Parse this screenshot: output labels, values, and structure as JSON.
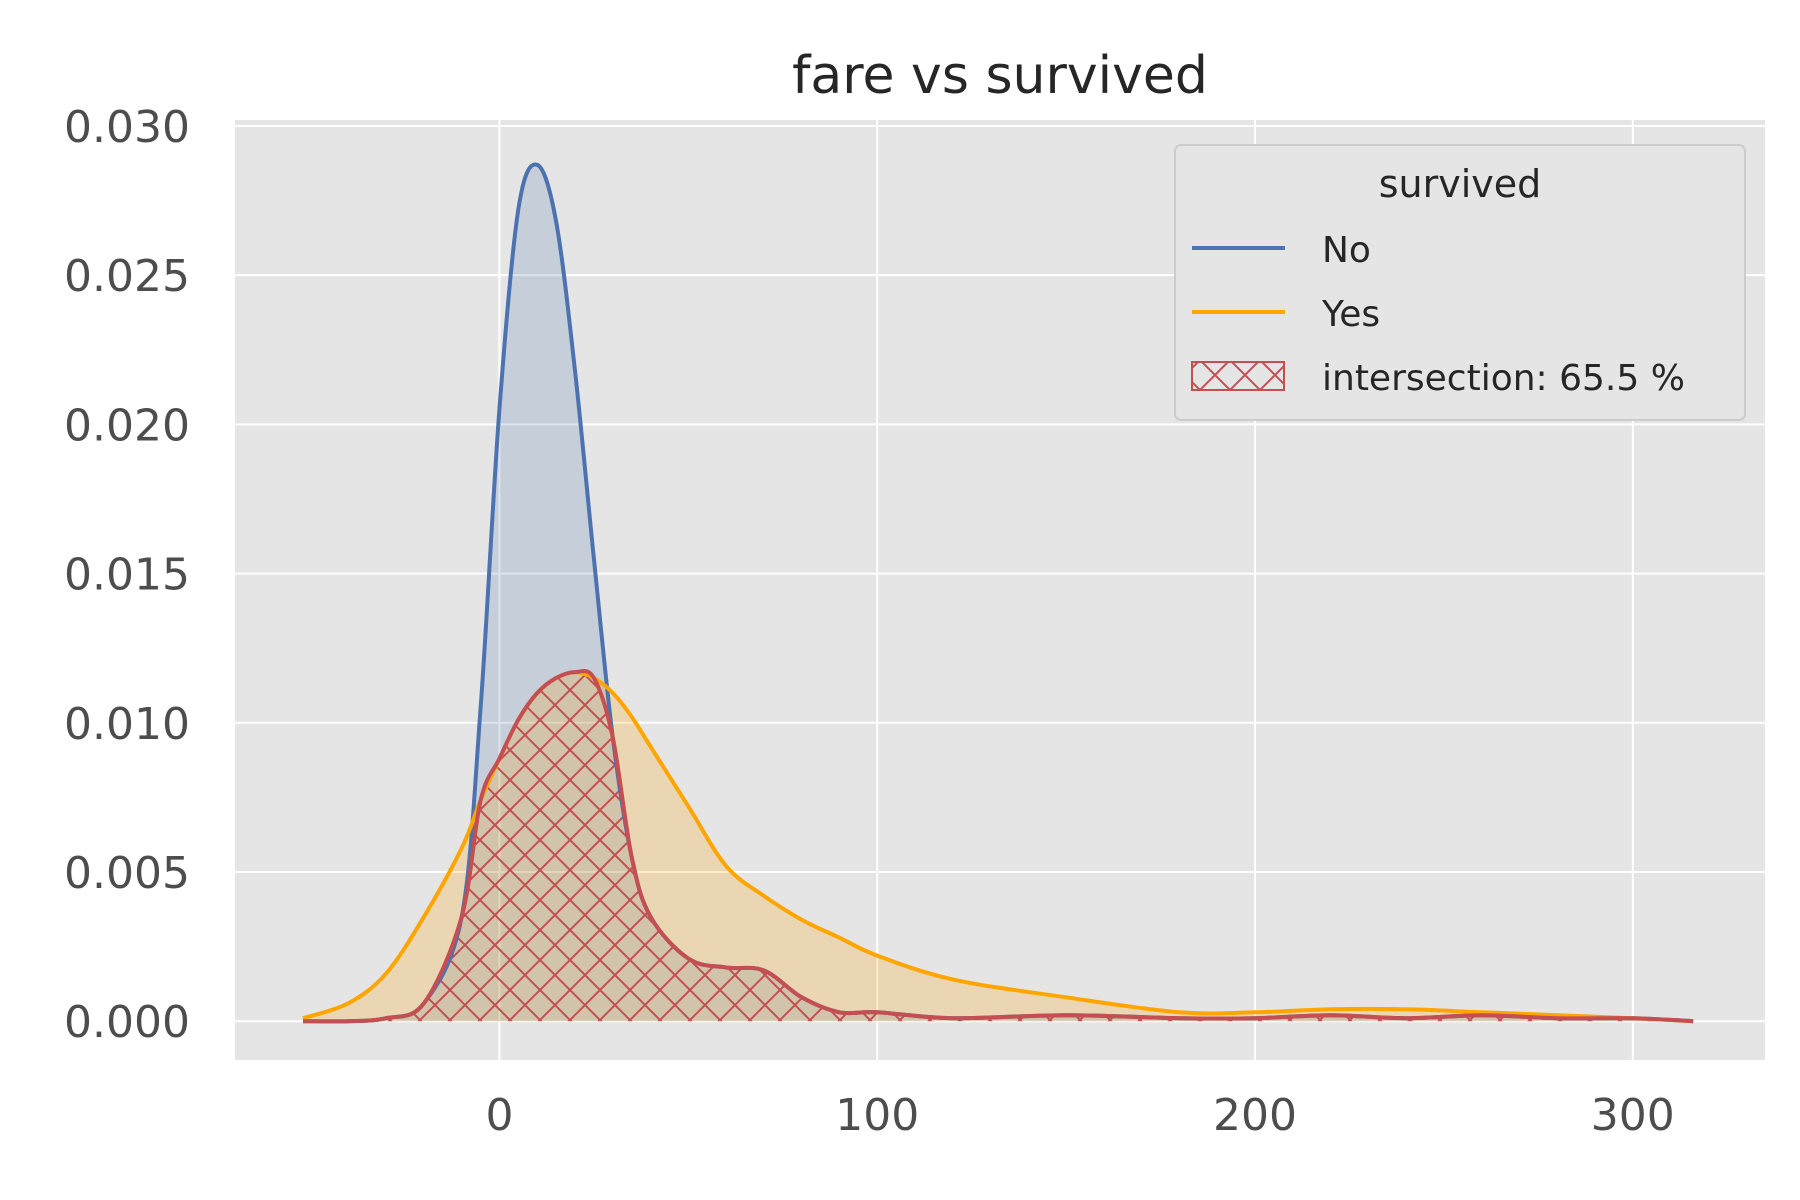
{
  "chart_data": {
    "type": "area",
    "title": "fare vs survived",
    "xlabel": "",
    "ylabel": "",
    "xlim": [
      -70,
      335
    ],
    "ylim": [
      -0.0013,
      0.0302
    ],
    "x_ticks": [
      "0",
      "100",
      "200",
      "300"
    ],
    "x_tick_values": [
      0,
      100,
      200,
      300
    ],
    "y_ticks": [
      "0.000",
      "0.005",
      "0.010",
      "0.015",
      "0.020",
      "0.025",
      "0.030"
    ],
    "y_tick_values": [
      0,
      0.005,
      0.01,
      0.015,
      0.02,
      0.025,
      0.03
    ],
    "grid": true,
    "legend": {
      "title": "survived",
      "placement": "top-right",
      "entries": [
        "No",
        "Yes",
        "intersection: 65.5 %"
      ]
    },
    "colors": {
      "No": "#4c72b0",
      "Yes": "#ffa500",
      "intersection": "#c44e52",
      "background": "#e5e5e5"
    },
    "x": [
      -52,
      -40,
      -30,
      -20,
      -10,
      -5,
      0,
      5,
      10,
      15,
      20,
      25,
      30,
      35,
      40,
      50,
      60,
      70,
      80,
      90,
      100,
      120,
      150,
      180,
      200,
      220,
      240,
      260,
      280,
      300,
      316
    ],
    "series": [
      {
        "name": "No",
        "values": [
          0,
          0,
          0.0001,
          0.0006,
          0.0035,
          0.0105,
          0.0205,
          0.0272,
          0.0287,
          0.0268,
          0.0218,
          0.0155,
          0.0095,
          0.0055,
          0.0035,
          0.0021,
          0.0018,
          0.0017,
          0.0008,
          0.0003,
          0.0003,
          0.0001,
          0.0002,
          0.0001,
          0.0001,
          0.0002,
          0.0001,
          0.0002,
          0.0001,
          0.0001,
          0
        ]
      },
      {
        "name": "Yes",
        "values": [
          0.0001,
          0.0006,
          0.0016,
          0.0035,
          0.0058,
          0.0074,
          0.0088,
          0.0101,
          0.011,
          0.0115,
          0.0117,
          0.0115,
          0.011,
          0.0102,
          0.0092,
          0.0072,
          0.0052,
          0.0042,
          0.0034,
          0.0028,
          0.0022,
          0.0014,
          0.0008,
          0.0003,
          0.0003,
          0.0004,
          0.0004,
          0.0003,
          0.0002,
          0.0001,
          0
        ]
      }
    ],
    "intersection_percent": 65.5
  }
}
